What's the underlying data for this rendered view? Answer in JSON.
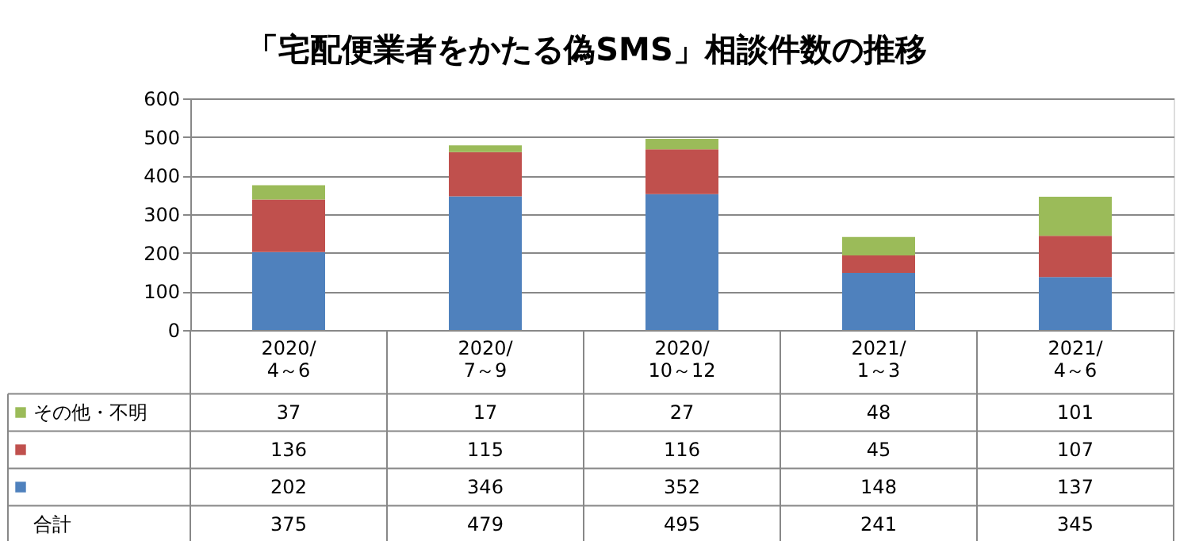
{
  "chart_data": {
    "type": "bar",
    "title": "「宅配便業者をかたる偽SMS」相談件数の推移",
    "categories": [
      "2020/\n4～6",
      "2020/\n7～9",
      "2020/\n10～12",
      "2021/\n1～3",
      "2021/\n4～6"
    ],
    "stacked": true,
    "series": [
      {
        "color": "#4f81bd",
        "values": [
          202,
          346,
          352,
          148,
          137
        ]
      },
      {
        "color": "#c0504d",
        "values": [
          136,
          115,
          116,
          45,
          107
        ]
      },
      {
        "name": "その他・不明",
        "color": "#9bbb59",
        "values": [
          37,
          17,
          27,
          48,
          101
        ]
      }
    ],
    "annotations": [
      "合計",
      "375",
      "479",
      "495",
      "241",
      "345"
    ],
    "data_labels": true,
    "ylim": [
      0,
      600
    ],
    "yticks": [
      0,
      100,
      200,
      300,
      400,
      500,
      600
    ],
    "grid": "y",
    "legend": "bottom left"
  }
}
